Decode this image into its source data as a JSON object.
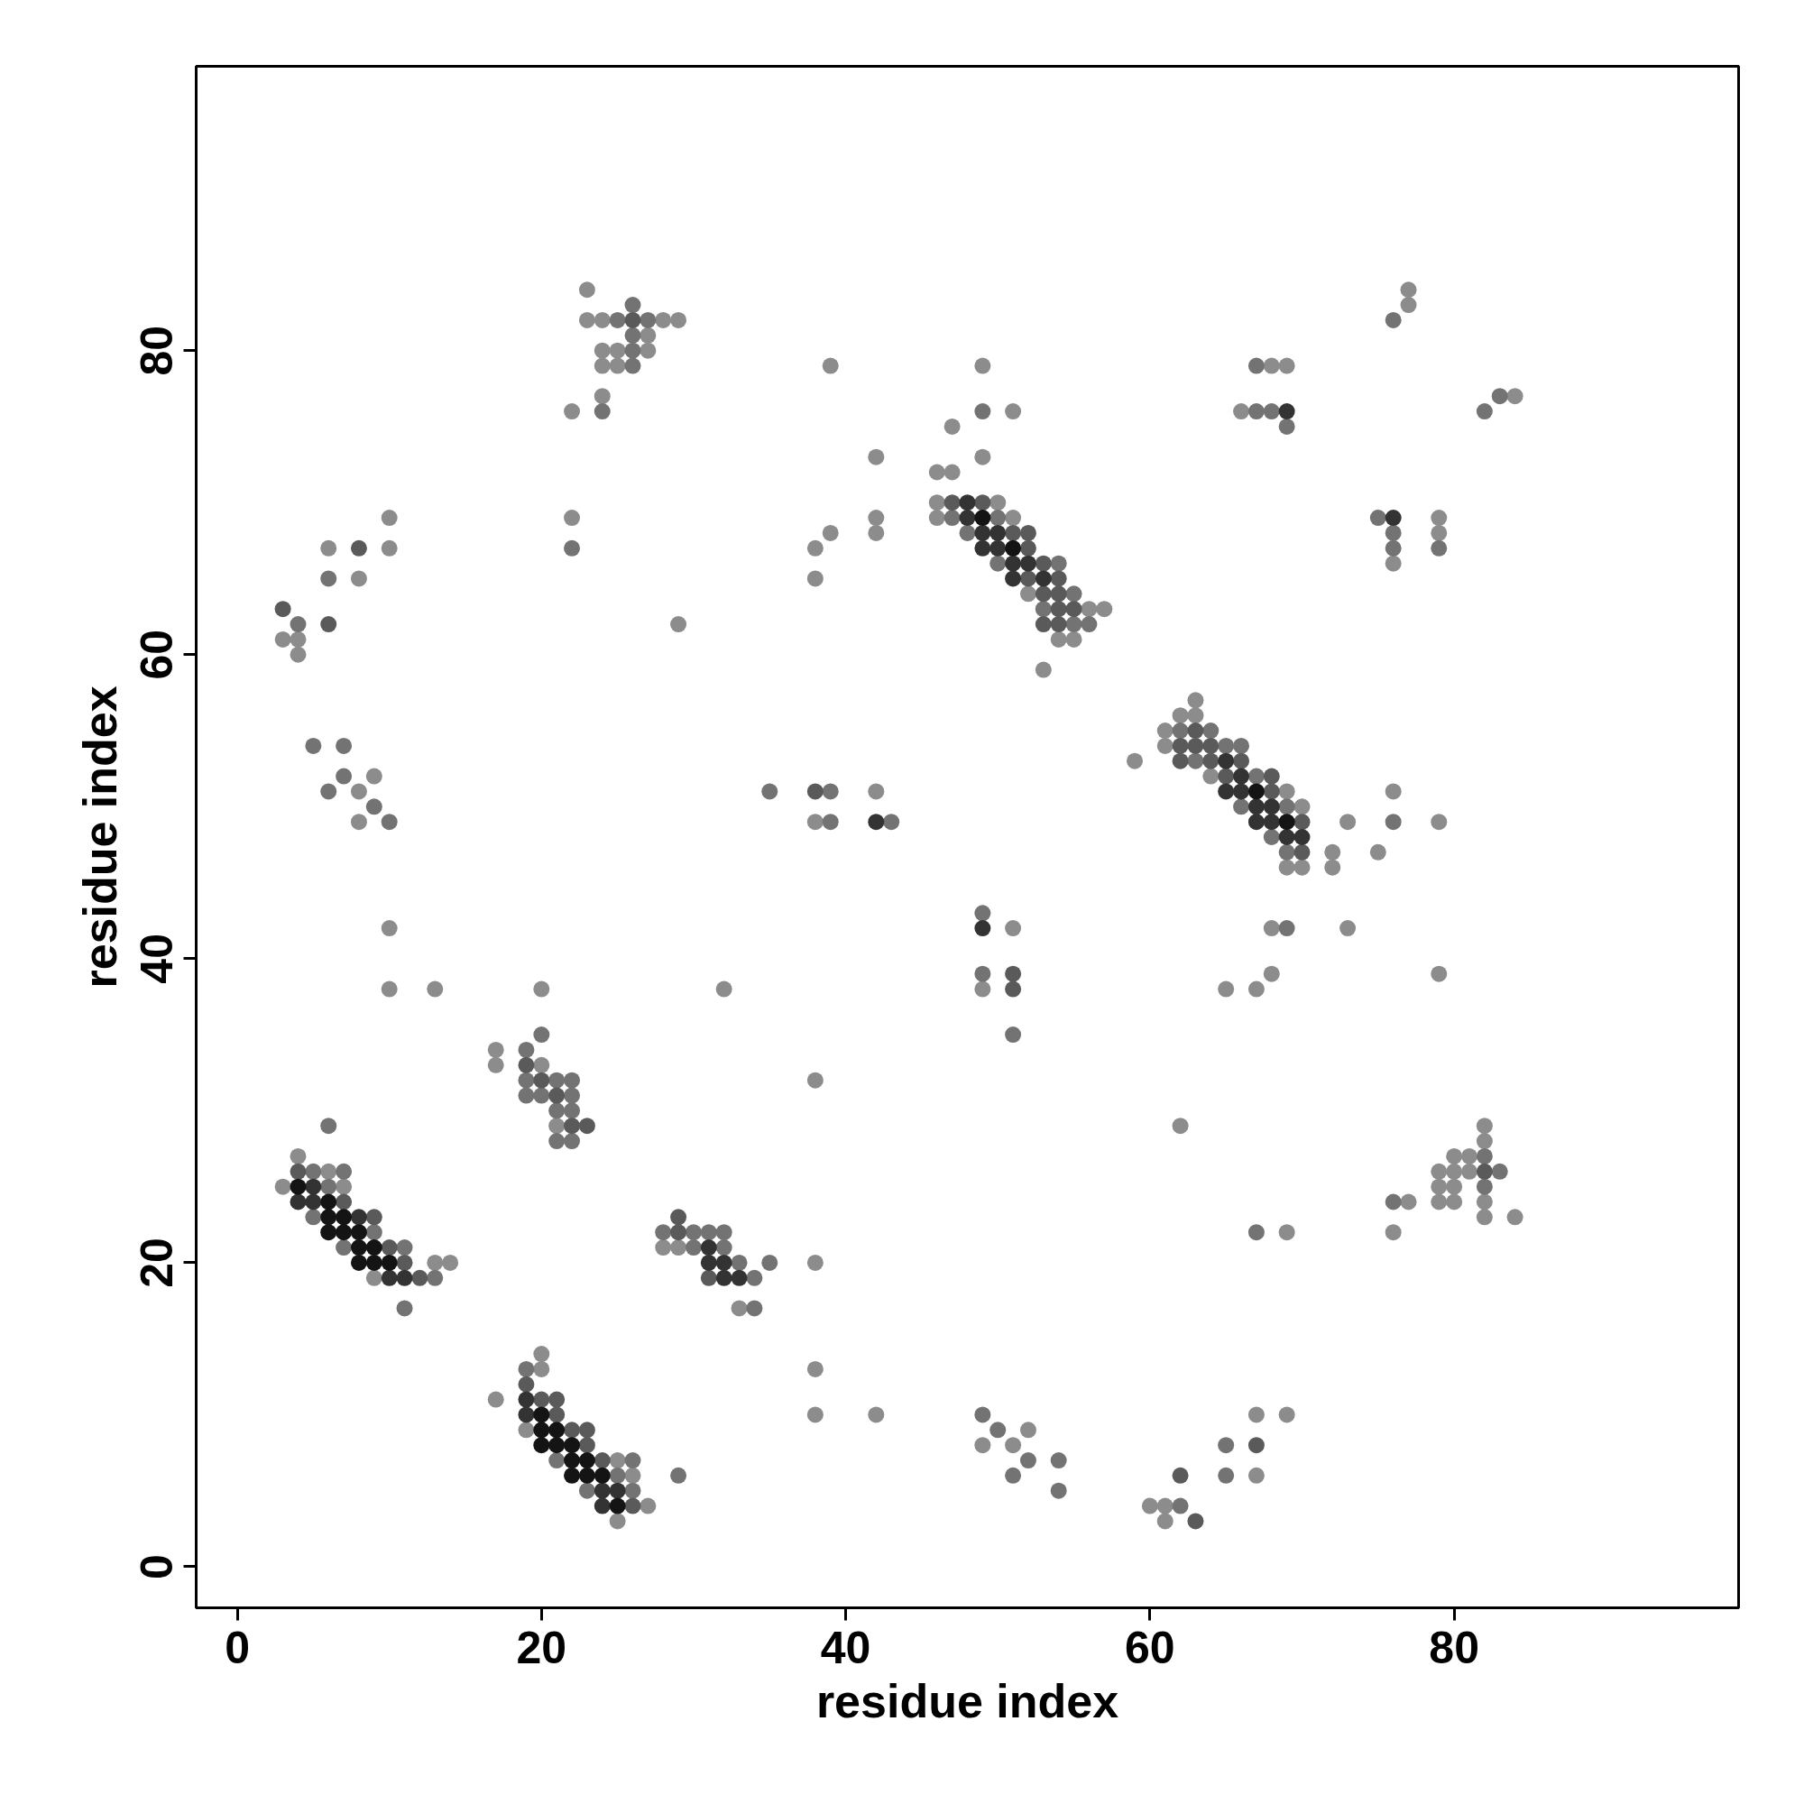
{
  "chart_data": {
    "type": "scatter",
    "xlabel": "residue index",
    "ylabel": "residue index",
    "marker": "circle",
    "xlim": [
      -2.7,
      98.7
    ],
    "ylim": [
      -2.7,
      98.7
    ],
    "xticks": [
      0,
      20,
      40,
      60,
      80
    ],
    "yticks": [
      0,
      20,
      40,
      60,
      80
    ],
    "series": [
      {
        "color": "#8c8c8c",
        "x": [
          23,
          23,
          24,
          28,
          29,
          27,
          24,
          25,
          27,
          24,
          25,
          24,
          22,
          10,
          22,
          6,
          10,
          8,
          29,
          3,
          4,
          4,
          9,
          8,
          8,
          10,
          10,
          13,
          20,
          32,
          17,
          17,
          20,
          21,
          4,
          6,
          3,
          7,
          13,
          14,
          9,
          20,
          20,
          17,
          19,
          25,
          26,
          27,
          25,
          28,
          29,
          33,
          38,
          38,
          38,
          42,
          38,
          42,
          38,
          51,
          49,
          62,
          52,
          49,
          51,
          60,
          61,
          61,
          67,
          69,
          67,
          39,
          49,
          51,
          47,
          42,
          49,
          46,
          47,
          46,
          50,
          42,
          46,
          51,
          39,
          42,
          38,
          38,
          52,
          56,
          57,
          54,
          55,
          53,
          63,
          62,
          63,
          61,
          61,
          59,
          64,
          69,
          70,
          73,
          79,
          72,
          75,
          69,
          70,
          72,
          76,
          68,
          73,
          68,
          79,
          65,
          67,
          77,
          77,
          68,
          69,
          84,
          66,
          79,
          79,
          76,
          82,
          82,
          80,
          81,
          79,
          80,
          81,
          79,
          80,
          77,
          79,
          80,
          82,
          82,
          84,
          69,
          76
        ],
        "values": [
          84,
          82,
          82,
          82,
          82,
          81,
          80,
          80,
          80,
          79,
          79,
          77,
          76,
          69,
          69,
          67,
          67,
          65,
          62,
          61,
          61,
          60,
          52,
          51,
          49,
          42,
          38,
          38,
          38,
          38,
          34,
          33,
          33,
          29,
          27,
          26,
          25,
          25,
          20,
          20,
          19,
          14,
          13,
          11,
          9,
          7,
          6,
          4,
          3,
          21,
          21,
          17,
          20,
          13,
          10,
          10,
          32,
          51,
          49,
          42,
          38,
          29,
          9,
          8,
          8,
          4,
          4,
          3,
          10,
          10,
          6,
          79,
          79,
          76,
          75,
          73,
          73,
          72,
          72,
          70,
          70,
          69,
          69,
          69,
          68,
          68,
          67,
          65,
          64,
          63,
          63,
          61,
          61,
          59,
          57,
          56,
          56,
          55,
          54,
          53,
          52,
          51,
          50,
          49,
          49,
          47,
          47,
          46,
          46,
          46,
          51,
          42,
          42,
          39,
          39,
          38,
          38,
          84,
          83,
          79,
          79,
          77,
          76,
          69,
          68,
          66,
          29,
          28,
          27,
          27,
          26,
          26,
          26,
          25,
          25,
          24,
          24,
          24,
          24,
          23,
          23,
          22,
          22
        ]
      },
      {
        "color": "#737373",
        "x": [
          25,
          27,
          26,
          26,
          26,
          26,
          24,
          22,
          6,
          4,
          5,
          7,
          7,
          6,
          9,
          10,
          20,
          19,
          19,
          21,
          22,
          19,
          20,
          22,
          21,
          22,
          21,
          22,
          6,
          5,
          7,
          6,
          5,
          9,
          7,
          11,
          13,
          11,
          19,
          21,
          26,
          25,
          29,
          23,
          26,
          28,
          30,
          31,
          32,
          30,
          32,
          33,
          35,
          34,
          34,
          35,
          39,
          39,
          43,
          49,
          49,
          51,
          49,
          50,
          52,
          54,
          51,
          54,
          62,
          65,
          65,
          49,
          47,
          50,
          48,
          50,
          54,
          55,
          53,
          55,
          56,
          62,
          64,
          65,
          66,
          63,
          67,
          66,
          69,
          76,
          68,
          69,
          69,
          76,
          67,
          83,
          67,
          68,
          82,
          69,
          75,
          76,
          76,
          79,
          82,
          83,
          82,
          76,
          67
        ],
        "values": [
          82,
          82,
          83,
          81,
          80,
          79,
          76,
          67,
          65,
          62,
          54,
          54,
          52,
          51,
          50,
          49,
          35,
          34,
          32,
          32,
          32,
          31,
          31,
          31,
          30,
          30,
          28,
          28,
          29,
          26,
          26,
          25,
          23,
          22,
          21,
          21,
          19,
          17,
          13,
          7,
          7,
          6,
          6,
          5,
          5,
          22,
          22,
          22,
          22,
          21,
          21,
          20,
          20,
          19,
          17,
          51,
          51,
          49,
          49,
          43,
          39,
          35,
          10,
          9,
          7,
          7,
          6,
          5,
          4,
          8,
          6,
          76,
          69,
          69,
          68,
          66,
          66,
          64,
          63,
          62,
          62,
          55,
          55,
          54,
          54,
          53,
          52,
          50,
          50,
          49,
          48,
          47,
          42,
          82,
          79,
          77,
          76,
          76,
          76,
          75,
          69,
          68,
          67,
          67,
          27,
          26,
          25,
          24,
          22
        ]
      },
      {
        "color": "#5a5a5a",
        "x": [
          26,
          8,
          3,
          6,
          19,
          20,
          21,
          22,
          23,
          4,
          7,
          9,
          10,
          11,
          12,
          19,
          20,
          21,
          21,
          22,
          23,
          23,
          24,
          26,
          29,
          29,
          31,
          38,
          51,
          51,
          63,
          62,
          67,
          47,
          49,
          51,
          52,
          52,
          53,
          52,
          54,
          53,
          54,
          54,
          55,
          53,
          54,
          63,
          62,
          63,
          64,
          62,
          64,
          66,
          65,
          68,
          68,
          70,
          70,
          82
        ],
        "values": [
          82,
          67,
          63,
          62,
          33,
          32,
          31,
          29,
          29,
          26,
          24,
          23,
          21,
          20,
          19,
          12,
          11,
          11,
          10,
          9,
          9,
          8,
          7,
          4,
          23,
          22,
          19,
          51,
          39,
          38,
          3,
          6,
          8,
          70,
          70,
          68,
          68,
          67,
          66,
          65,
          65,
          64,
          64,
          63,
          63,
          62,
          62,
          55,
          54,
          54,
          54,
          53,
          53,
          53,
          52,
          52,
          51,
          49,
          47,
          26
        ]
      },
      {
        "color": "#333333",
        "x": [
          5,
          4,
          5,
          8,
          10,
          11,
          19,
          19,
          24,
          25,
          24,
          31,
          31,
          32,
          32,
          33,
          42,
          49,
          48,
          48,
          49,
          50,
          49,
          50,
          51,
          52,
          51,
          53,
          65,
          66,
          65,
          66,
          67,
          68,
          67,
          68,
          69,
          70,
          69,
          76
        ],
        "values": [
          25,
          24,
          24,
          23,
          19,
          19,
          11,
          10,
          5,
          5,
          4,
          21,
          20,
          20,
          19,
          19,
          49,
          42,
          70,
          69,
          68,
          68,
          67,
          67,
          66,
          66,
          65,
          65,
          53,
          52,
          51,
          51,
          50,
          50,
          49,
          49,
          48,
          48,
          76,
          69
        ]
      },
      {
        "color": "#141414",
        "x": [
          4,
          6,
          6,
          7,
          6,
          7,
          8,
          8,
          9,
          8,
          9,
          10,
          20,
          20,
          21,
          20,
          21,
          22,
          22,
          23,
          22,
          23,
          24,
          25,
          49,
          51,
          67,
          69
        ],
        "values": [
          25,
          24,
          23,
          23,
          22,
          22,
          22,
          21,
          21,
          20,
          20,
          20,
          10,
          9,
          9,
          8,
          8,
          8,
          7,
          7,
          6,
          6,
          6,
          4,
          69,
          67,
          51,
          49
        ]
      }
    ]
  }
}
